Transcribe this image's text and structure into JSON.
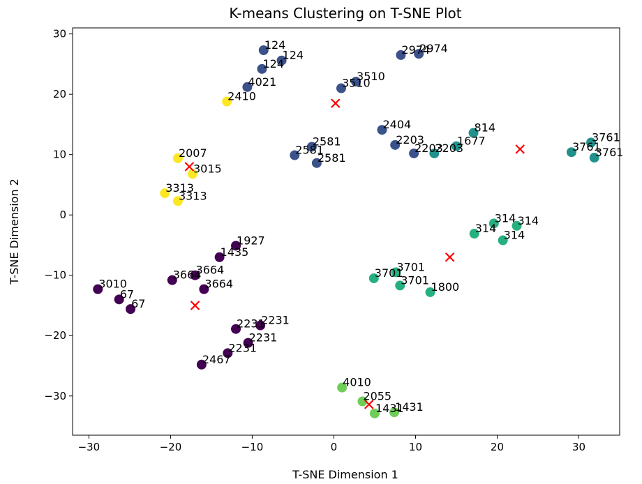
{
  "chart_data": {
    "type": "scatter",
    "title": "K-means Clustering on T-SNE Plot",
    "xlabel": "T-SNE Dimension 1",
    "ylabel": "T-SNE Dimension 2",
    "xlim": [
      -32,
      35
    ],
    "ylim": [
      -36.5,
      31
    ],
    "xticks": [
      -30,
      -20,
      -10,
      0,
      10,
      20,
      30
    ],
    "yticks": [
      -30,
      -20,
      -10,
      0,
      10,
      20,
      30
    ],
    "tick_labels_x": [
      "−30",
      "−20",
      "−10",
      "0",
      "10",
      "20",
      "30"
    ],
    "tick_labels_y": [
      "−30",
      "−20",
      "−10",
      "0",
      "10",
      "20",
      "30"
    ],
    "grid": false,
    "cluster_colors": [
      "#440154",
      "#3b528b",
      "#21918c",
      "#27b07f",
      "#6ece58",
      "#fde725"
    ],
    "centroid_color": "#ff0000",
    "points": [
      {
        "x": -8.6,
        "y": 27.3,
        "label": "124",
        "cluster": 1
      },
      {
        "x": -6.4,
        "y": 25.6,
        "label": "124",
        "cluster": 1
      },
      {
        "x": -8.8,
        "y": 24.2,
        "label": "124",
        "cluster": 1
      },
      {
        "x": -10.6,
        "y": 21.2,
        "label": "4021",
        "cluster": 1
      },
      {
        "x": 8.2,
        "y": 26.5,
        "label": "2974",
        "cluster": 1
      },
      {
        "x": 10.4,
        "y": 26.7,
        "label": "2974",
        "cluster": 1
      },
      {
        "x": 2.7,
        "y": 22.1,
        "label": "3510",
        "cluster": 1
      },
      {
        "x": 0.9,
        "y": 21.0,
        "label": "3510",
        "cluster": 1
      },
      {
        "x": 5.9,
        "y": 14.1,
        "label": "2404",
        "cluster": 1
      },
      {
        "x": 7.5,
        "y": 11.6,
        "label": "2203",
        "cluster": 1
      },
      {
        "x": 9.8,
        "y": 10.2,
        "label": "2203",
        "cluster": 1
      },
      {
        "x": -2.7,
        "y": 11.3,
        "label": "2581",
        "cluster": 1
      },
      {
        "x": -4.8,
        "y": 9.9,
        "label": "2581",
        "cluster": 1
      },
      {
        "x": -2.1,
        "y": 8.6,
        "label": "2581",
        "cluster": 1
      },
      {
        "x": 12.3,
        "y": 10.2,
        "label": "2203",
        "cluster": 2
      },
      {
        "x": 15.0,
        "y": 11.4,
        "label": "1677",
        "cluster": 2
      },
      {
        "x": 17.1,
        "y": 13.6,
        "label": "814",
        "cluster": 2
      },
      {
        "x": 29.1,
        "y": 10.4,
        "label": "3761",
        "cluster": 2
      },
      {
        "x": 31.5,
        "y": 12.0,
        "label": "3761",
        "cluster": 2
      },
      {
        "x": 31.9,
        "y": 9.5,
        "label": "3761",
        "cluster": 2
      },
      {
        "x": 19.6,
        "y": -1.4,
        "label": "314",
        "cluster": 3
      },
      {
        "x": 22.4,
        "y": -1.8,
        "label": "314",
        "cluster": 3
      },
      {
        "x": 17.2,
        "y": -3.1,
        "label": "314",
        "cluster": 3
      },
      {
        "x": 20.7,
        "y": -4.2,
        "label": "314",
        "cluster": 3
      },
      {
        "x": 7.6,
        "y": -9.5,
        "label": "3701",
        "cluster": 3
      },
      {
        "x": 4.9,
        "y": -10.5,
        "label": "3701",
        "cluster": 3
      },
      {
        "x": 8.1,
        "y": -11.7,
        "label": "3701",
        "cluster": 3
      },
      {
        "x": 11.8,
        "y": -12.8,
        "label": "1800",
        "cluster": 3
      },
      {
        "x": 1.0,
        "y": -28.6,
        "label": "4010",
        "cluster": 4
      },
      {
        "x": 3.5,
        "y": -30.9,
        "label": "2055",
        "cluster": 4
      },
      {
        "x": 5.0,
        "y": -32.9,
        "label": "1431",
        "cluster": 4
      },
      {
        "x": 7.4,
        "y": -32.7,
        "label": "1431",
        "cluster": 4
      },
      {
        "x": -13.1,
        "y": 18.8,
        "label": "2410",
        "cluster": 5
      },
      {
        "x": -19.1,
        "y": 9.4,
        "label": "2007",
        "cluster": 5
      },
      {
        "x": -17.3,
        "y": 6.8,
        "label": "3015",
        "cluster": 5
      },
      {
        "x": -20.7,
        "y": 3.6,
        "label": "3313",
        "cluster": 5
      },
      {
        "x": -19.1,
        "y": 2.3,
        "label": "3313",
        "cluster": 5
      },
      {
        "x": -12.0,
        "y": -5.1,
        "label": "1927",
        "cluster": 0
      },
      {
        "x": -14.0,
        "y": -7.0,
        "label": "1435",
        "cluster": 0
      },
      {
        "x": -17.0,
        "y": -10.0,
        "label": "3664",
        "cluster": 0
      },
      {
        "x": -19.8,
        "y": -10.8,
        "label": "3664",
        "cluster": 0
      },
      {
        "x": -15.9,
        "y": -12.3,
        "label": "3664",
        "cluster": 0
      },
      {
        "x": -28.9,
        "y": -12.3,
        "label": "3010",
        "cluster": 0
      },
      {
        "x": -26.3,
        "y": -14.0,
        "label": "67",
        "cluster": 0
      },
      {
        "x": -24.9,
        "y": -15.6,
        "label": "67",
        "cluster": 0
      },
      {
        "x": -9.0,
        "y": -18.3,
        "label": "2231",
        "cluster": 0
      },
      {
        "x": -12.0,
        "y": -18.9,
        "label": "2231",
        "cluster": 0
      },
      {
        "x": -10.5,
        "y": -21.2,
        "label": "2231",
        "cluster": 0
      },
      {
        "x": -13.0,
        "y": -22.9,
        "label": "2231",
        "cluster": 0
      },
      {
        "x": -16.2,
        "y": -24.8,
        "label": "2467",
        "cluster": 0
      }
    ],
    "centroids": [
      {
        "x": 0.2,
        "y": 18.5
      },
      {
        "x": 22.8,
        "y": 10.9
      },
      {
        "x": 14.2,
        "y": -7.0
      },
      {
        "x": 4.3,
        "y": -31.4
      },
      {
        "x": -17.7,
        "y": 8.0
      },
      {
        "x": -17.0,
        "y": -15.0
      }
    ]
  }
}
